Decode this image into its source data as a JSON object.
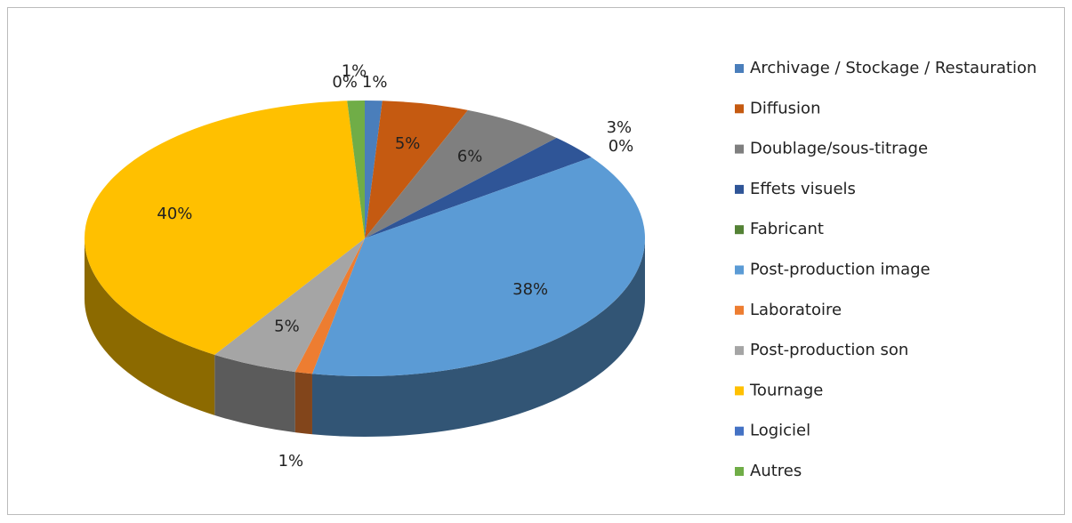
{
  "chart_data": {
    "type": "pie",
    "categories": [
      "Archivage / Stockage / Restauration",
      "Diffusion",
      "Doublage/sous-titrage",
      "Effets visuels",
      "Fabricant",
      "Post-production image",
      "Laboratoire",
      "Post-production son",
      "Tournage",
      "Logiciel",
      "Autres"
    ],
    "values": [
      1,
      5,
      6,
      3,
      0,
      38,
      1,
      5,
      40,
      0,
      1
    ],
    "value_labels": [
      "1%",
      "5%",
      "6%",
      "3%",
      "0%",
      "38%",
      "1%",
      "5%",
      "40%",
      "0%",
      "1%"
    ],
    "colors": [
      "#4a7ebb",
      "#c55a11",
      "#7f7f7f",
      "#2f5597",
      "#548235",
      "#5b9bd5",
      "#ed7d31",
      "#a5a5a5",
      "#ffc000",
      "#4472c4",
      "#70ad47"
    ],
    "legend": "right"
  }
}
